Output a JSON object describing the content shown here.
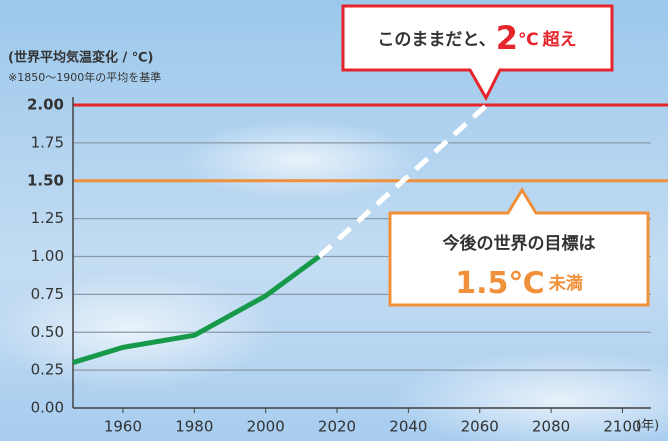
{
  "chart_data": {
    "type": "line",
    "subtitle": "(世界平均気温変化 / ℃)",
    "note": "※1850～1900年の平均を基準",
    "x_label": "(年)",
    "series": [
      {
        "color": "#17994a",
        "line_style": "solid",
        "x": [
          1946,
          1960,
          1980,
          2000,
          2015
        ],
        "values": [
          0.3,
          0.4,
          0.48,
          0.74,
          1.0
        ]
      },
      {
        "color": "#ffffff",
        "line_style": "dashed",
        "x": [
          2015,
          2062
        ],
        "values": [
          1.0,
          2.0
        ]
      }
    ],
    "reference_lines": [
      {
        "value": 2,
        "color": "#e6242b"
      },
      {
        "value": 1.5,
        "color": "#f0903a"
      }
    ],
    "xlim": [
      1946,
      2108
    ],
    "xticks": [
      1960,
      1980,
      2000,
      2020,
      2040,
      2060,
      2080,
      2100
    ],
    "ylim": [
      0,
      2
    ],
    "yticks": [
      {
        "value": 0,
        "label": "0.00"
      },
      {
        "value": 0.25,
        "label": "0.25"
      },
      {
        "value": 0.5,
        "label": "0.50"
      },
      {
        "value": 0.75,
        "label": "0.75"
      },
      {
        "value": 1,
        "label": "1.00"
      },
      {
        "value": 1.25,
        "label": "1.25"
      },
      {
        "value": 1.5,
        "label": "1.50"
      },
      {
        "value": 1.75,
        "label": "1.75"
      },
      {
        "value": 2,
        "label": "2.00"
      }
    ],
    "grid": true,
    "callouts": [
      {
        "parts": [
          "このままだと、",
          "2",
          "℃",
          "超え"
        ],
        "color": "#e6242b"
      },
      {
        "parts": [
          "今後の世界の目標は",
          "1.5℃",
          "未満"
        ],
        "color": "#f0903a"
      }
    ]
  }
}
